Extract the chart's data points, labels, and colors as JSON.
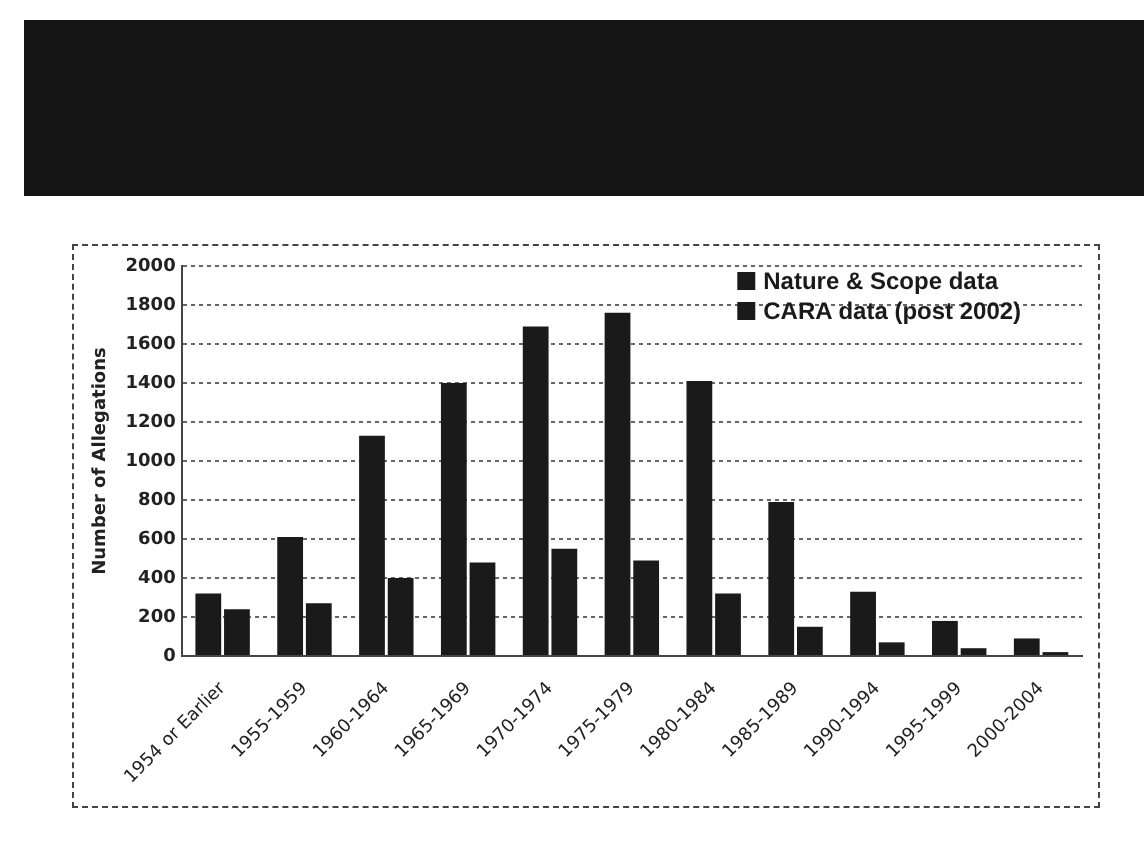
{
  "chart_data": {
    "type": "bar",
    "ylabel": "Number of Allegations",
    "categories": [
      "1954 or Earlier",
      "1955-1959",
      "1960-1964",
      "1965-1969",
      "1970-1974",
      "1975-1979",
      "1980-1984",
      "1985-1989",
      "1990-1994",
      "1995-1999",
      "2000-2004"
    ],
    "series": [
      {
        "name": "Nature & Scope data",
        "color": "#1a1a1a",
        "values": [
          320,
          610,
          1130,
          1400,
          1690,
          1760,
          1410,
          790,
          330,
          180,
          90
        ]
      },
      {
        "name": "CARA data (post 2002)",
        "color": "#1a1a1a",
        "values": [
          240,
          270,
          400,
          480,
          550,
          490,
          320,
          150,
          70,
          40,
          20
        ]
      }
    ],
    "ylim": [
      0,
      2000
    ],
    "yticks": [
      0,
      200,
      400,
      600,
      800,
      1000,
      1200,
      1400,
      1600,
      1800,
      2000
    ],
    "grid": "y",
    "legend": "top right"
  }
}
